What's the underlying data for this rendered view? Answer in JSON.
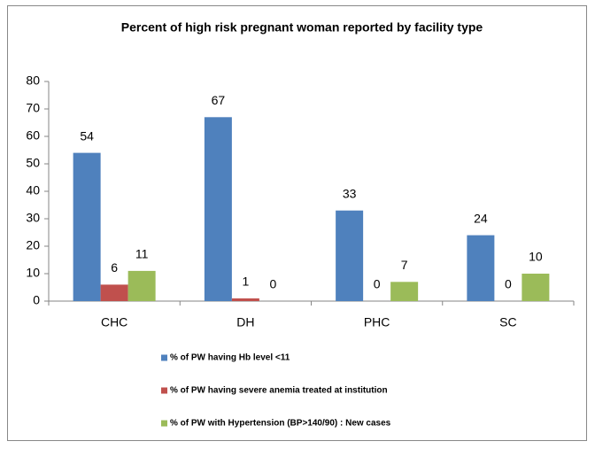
{
  "chart_data": {
    "type": "bar",
    "title": "Percent of high risk pregnant woman reported by facility type",
    "categories": [
      "CHC",
      "DH",
      "PHC",
      "SC"
    ],
    "series": [
      {
        "name": "% of PW having Hb level <11",
        "color": "#4f81bd",
        "values": [
          54,
          67,
          33,
          24
        ]
      },
      {
        "name": "% of PW having severe anemia treated at institution",
        "color": "#c0504d",
        "values": [
          6,
          1,
          0,
          0
        ]
      },
      {
        "name": "% of PW with Hypertension (BP>140/90) : New cases",
        "color": "#9bbb59",
        "values": [
          11,
          0,
          7,
          10
        ]
      }
    ],
    "ylim": [
      0,
      80
    ],
    "yticks": [
      0,
      10,
      20,
      30,
      40,
      50,
      60,
      70,
      80
    ],
    "grid": false,
    "legend": "bottom"
  }
}
